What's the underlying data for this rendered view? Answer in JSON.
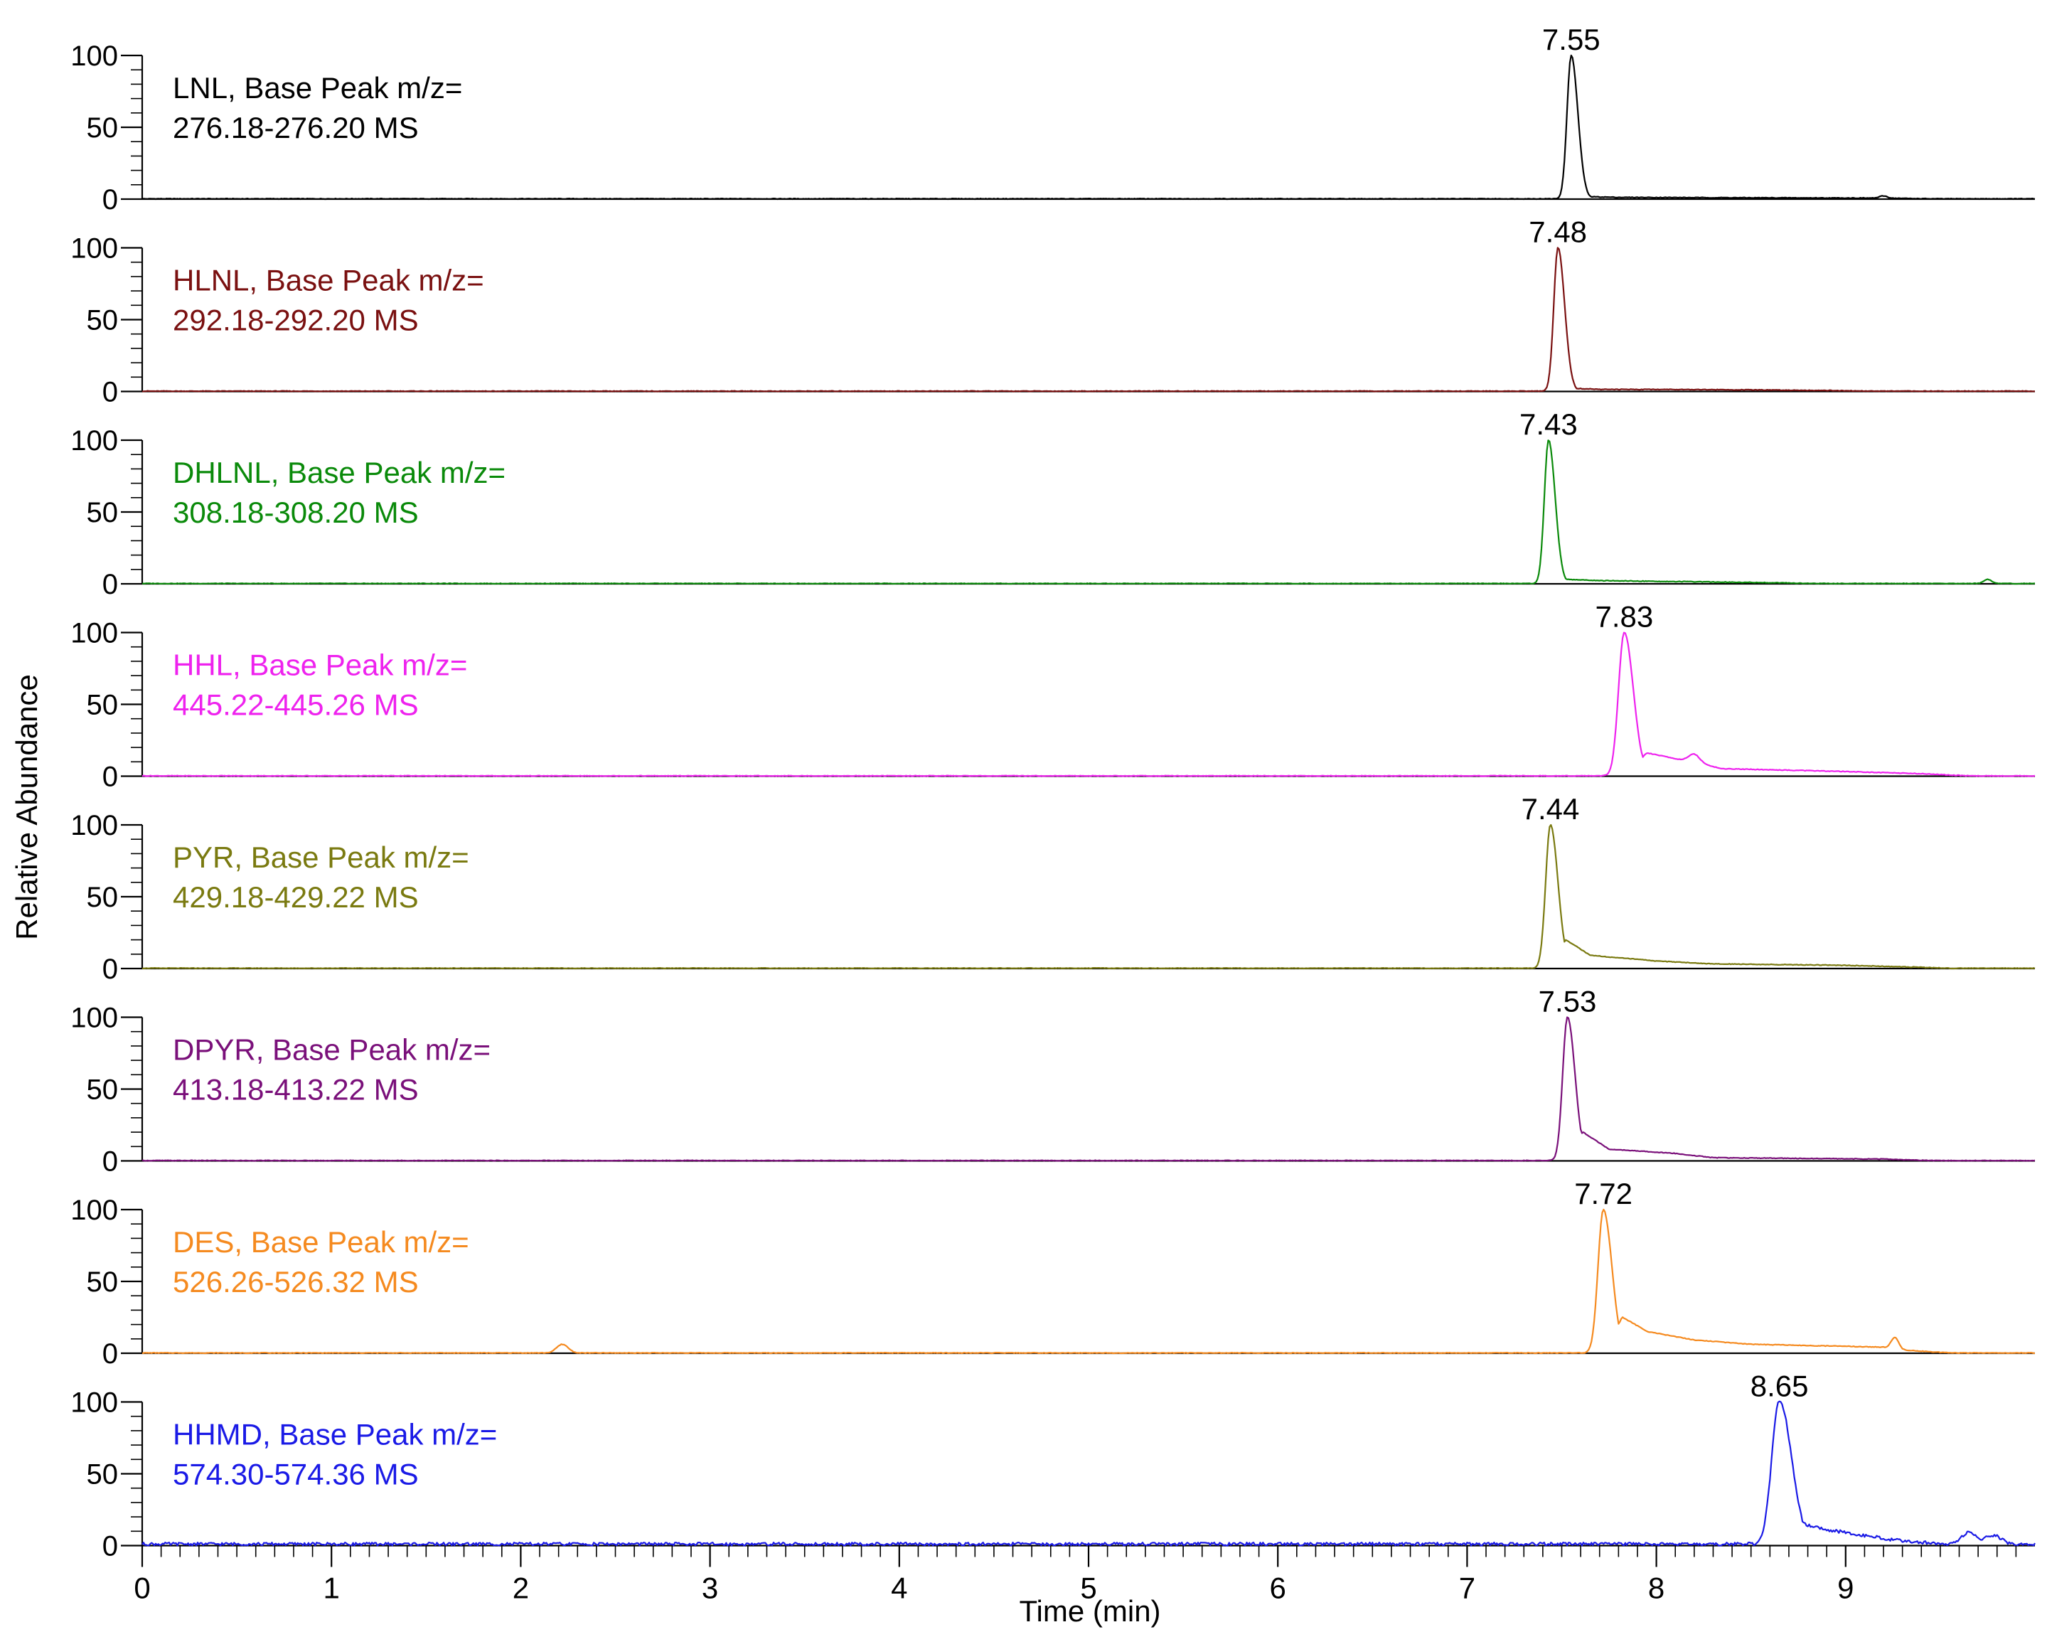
{
  "chart_data": {
    "type": "line",
    "xlabel": "Time (min)",
    "ylabel": "Relative Abundance",
    "xlim": [
      0,
      10
    ],
    "x_ticks": [
      "0",
      "1",
      "2",
      "3",
      "4",
      "5",
      "6",
      "7",
      "8",
      "9"
    ],
    "y_ticks": [
      "0",
      "50",
      "100"
    ],
    "ylim": [
      0,
      100
    ],
    "grid": false,
    "legend": "none",
    "series": [
      {
        "name": "LNL",
        "label_line1": "LNL, Base Peak m/z=",
        "label_line2": "276.18-276.20  MS",
        "color": "#000000",
        "peak_time": 7.55,
        "peak_label": "7.55",
        "peak_width": 0.022,
        "tail": [
          [
            7.63,
            1.5
          ],
          [
            7.8,
            1.0
          ],
          [
            8.2,
            0.8
          ],
          [
            9.2,
            0.5
          ]
        ],
        "bumps": [
          [
            9.2,
            1.5,
            0.02
          ]
        ]
      },
      {
        "name": "HLNL",
        "label_line1": "HLNL, Base Peak m/z=",
        "label_line2": "292.18-292.20  MS",
        "color": "#7a1010",
        "peak_time": 7.48,
        "peak_label": "7.48",
        "peak_width": 0.022,
        "tail": [
          [
            7.56,
            2.0
          ],
          [
            7.7,
            1.2
          ],
          [
            8.1,
            1.2
          ],
          [
            8.9,
            0.5
          ]
        ],
        "bumps": []
      },
      {
        "name": "DHLNL",
        "label_line1": "DHLNL, Base Peak m/z=",
        "label_line2": "308.18-308.20  MS",
        "color": "#0a8a0a",
        "peak_time": 7.43,
        "peak_label": "7.43",
        "peak_width": 0.022,
        "tail": [
          [
            7.5,
            3.0
          ],
          [
            7.7,
            2.0
          ],
          [
            8.0,
            1.5
          ],
          [
            8.6,
            0.6
          ]
        ],
        "bumps": [
          [
            9.75,
            3.0,
            0.02
          ]
        ]
      },
      {
        "name": "HHL",
        "label_line1": "HHL, Base Peak m/z=",
        "label_line2": "445.22-445.26  MS",
        "color": "#ee22ee",
        "peak_time": 7.83,
        "peak_label": "7.83",
        "peak_width": 0.03,
        "tail": [
          [
            7.95,
            16.0
          ],
          [
            8.1,
            12.0
          ],
          [
            8.35,
            5.0
          ],
          [
            9.0,
            3.0
          ],
          [
            9.4,
            1.5
          ]
        ],
        "bumps": [
          [
            8.2,
            6.0,
            0.03
          ]
        ]
      },
      {
        "name": "PYR",
        "label_line1": "PYR, Base Peak m/z=",
        "label_line2": "429.18-429.22  MS",
        "color": "#7a7a10",
        "peak_time": 7.44,
        "peak_label": "7.44",
        "peak_width": 0.025,
        "tail": [
          [
            7.52,
            20.0
          ],
          [
            7.65,
            9.0
          ],
          [
            8.0,
            5.0
          ],
          [
            8.3,
            3.0
          ],
          [
            9.0,
            2.0
          ],
          [
            9.3,
            1.0
          ]
        ],
        "bumps": []
      },
      {
        "name": "DPYR",
        "label_line1": "DPYR, Base Peak m/z=",
        "label_line2": "413.18-413.22  MS",
        "color": "#7a107a",
        "peak_time": 7.53,
        "peak_label": "7.53",
        "peak_width": 0.025,
        "tail": [
          [
            7.61,
            20.0
          ],
          [
            7.75,
            8.0
          ],
          [
            8.1,
            5.0
          ],
          [
            8.3,
            2.0
          ],
          [
            9.2,
            1.0
          ]
        ],
        "bumps": []
      },
      {
        "name": "DES",
        "label_line1": "DES, Base Peak m/z=",
        "label_line2": "526.26-526.32  MS",
        "color": "#f58a1f",
        "peak_time": 7.72,
        "peak_label": "7.72",
        "peak_width": 0.028,
        "tail": [
          [
            7.82,
            25.0
          ],
          [
            7.95,
            15.0
          ],
          [
            8.2,
            9.0
          ],
          [
            8.5,
            6.0
          ],
          [
            9.2,
            4.0
          ],
          [
            9.3,
            2.0
          ]
        ],
        "bumps": [
          [
            2.22,
            6.0,
            0.03
          ],
          [
            9.26,
            8.0,
            0.02
          ]
        ]
      },
      {
        "name": "HHMD",
        "label_line1": "HHMD, Base Peak m/z=",
        "label_line2": "574.30-574.36  MS",
        "color": "#1a1ae6",
        "peak_time": 8.65,
        "peak_label": "8.65",
        "peak_width": 0.04,
        "tail": [
          [
            8.78,
            14.0
          ],
          [
            8.9,
            10.0
          ],
          [
            9.1,
            6.0
          ],
          [
            9.3,
            2.0
          ]
        ],
        "bumps": [
          [
            9.65,
            8.0,
            0.04
          ],
          [
            9.78,
            6.0,
            0.04
          ]
        ]
      }
    ]
  }
}
